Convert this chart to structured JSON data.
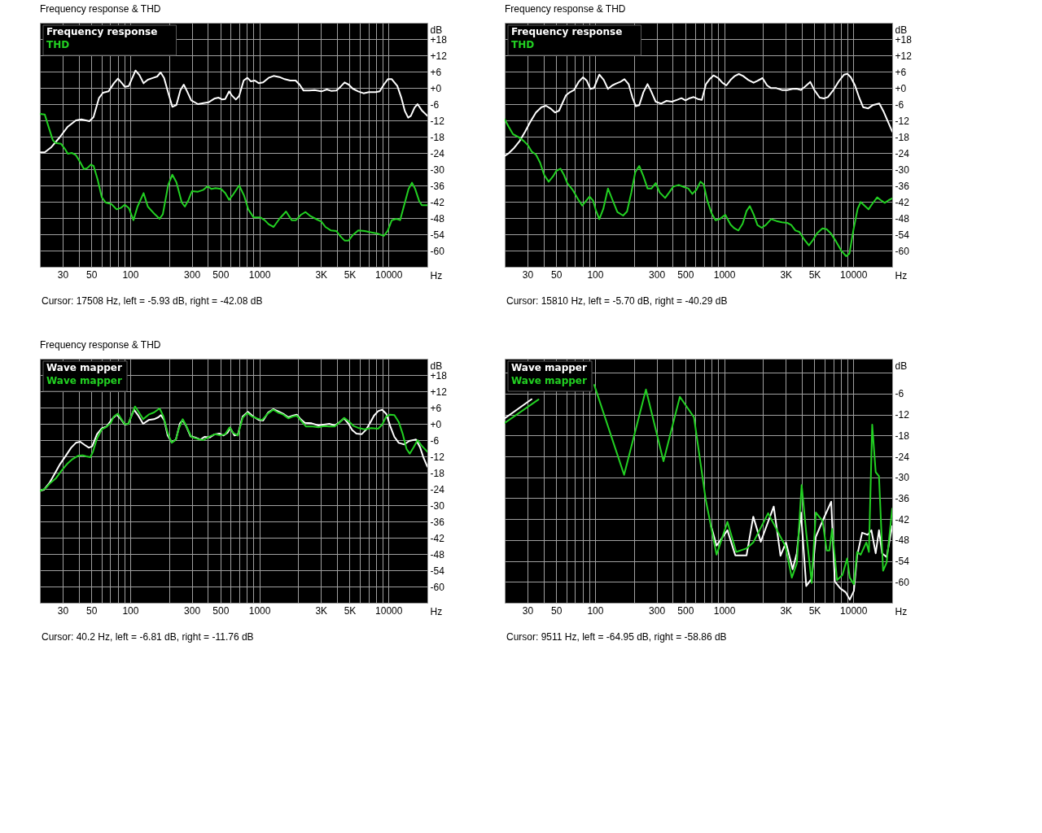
{
  "chart_data": [
    {
      "type": "line",
      "title": "Frequency response & THD",
      "xlabel": "Hz",
      "ylabel": "dB",
      "log": "x",
      "grid": true,
      "legend": "top left",
      "xlim": [
        20,
        20000
      ],
      "ylim": [
        -66,
        24
      ],
      "xticks": [
        30,
        {
          "value": 40,
          "label": null
        },
        50,
        {
          "value": 60,
          "label": null
        },
        {
          "value": 70,
          "label": null
        },
        {
          "value": 80,
          "label": null
        },
        {
          "value": 90,
          "label": null
        },
        100,
        {
          "value": 200,
          "label": null
        },
        300,
        {
          "value": 400,
          "label": null
        },
        500,
        {
          "value": 600,
          "label": null
        },
        {
          "value": 700,
          "label": null
        },
        {
          "value": 800,
          "label": null
        },
        {
          "value": 900,
          "label": null
        },
        1000,
        {
          "value": 2000,
          "label": null
        },
        {
          "value": 3000,
          "label": "3K"
        },
        {
          "value": 4000,
          "label": null
        },
        {
          "value": 5000,
          "label": "5K"
        },
        {
          "value": 6000,
          "label": null
        },
        {
          "value": 7000,
          "label": null
        },
        {
          "value": 8000,
          "label": null
        },
        {
          "value": 9000,
          "label": null
        },
        10000
      ],
      "yticks": [
        {
          "value": 18,
          "label": "+18"
        },
        {
          "value": 12,
          "label": "+12"
        },
        {
          "value": 6,
          "label": "+6"
        },
        {
          "value": 0,
          "label": "+0"
        },
        -6,
        -12,
        -18,
        -24,
        -30,
        -36,
        -42,
        -48,
        -54,
        -60
      ],
      "series": [
        {
          "name": "Frequency response",
          "color": "#ffffff",
          "x": [
            20,
            21.8,
            24.6,
            28.4,
            32.9,
            38,
            41.9,
            48.4,
            52,
            57.3,
            61.6,
            67.9,
            74.8,
            80.4,
            86.5,
            90.8,
            97.6,
            110,
            118,
            127,
            137,
            151,
            162,
            172,
            183,
            197,
            212,
            228,
            245,
            260,
            276,
            297,
            335,
            369,
            406,
            447,
            482,
            518,
            544,
            584,
            613,
            658,
            698,
            756,
            808,
            860,
            923,
            992,
            1070,
            1180,
            1290,
            1430,
            1570,
            1730,
            1910,
            2050,
            2200,
            2430,
            2680,
            3020,
            3330,
            3590,
            3950,
            4250,
            4570,
            4920,
            5290,
            5830,
            6410,
            7050,
            7950,
            8550,
            9200,
            9890,
            10600,
            11700,
            12600,
            13400,
            14200,
            14900,
            15900,
            16800,
            18100,
            20000
          ],
          "values": [
            -23.8,
            -23.8,
            -21.8,
            -18.3,
            -14.3,
            -12,
            -11.6,
            -12.3,
            -10.8,
            -3.8,
            -1.8,
            -1.3,
            1.7,
            3.4,
            1.7,
            0.4,
            0.7,
            6.4,
            4.7,
            1.7,
            3,
            3.7,
            4.2,
            5.7,
            3.7,
            -1.8,
            -7,
            -6.3,
            -0.8,
            1.2,
            -1.3,
            -4.6,
            -6,
            -5.6,
            -5.3,
            -4,
            -3.6,
            -4.3,
            -4.1,
            -1.3,
            -2.8,
            -4.3,
            -3,
            2.7,
            3.7,
            2.4,
            2.7,
            1.7,
            2,
            3.7,
            4.4,
            4,
            3.2,
            2.7,
            2.7,
            1.2,
            -1,
            -1,
            -0.8,
            -1.3,
            -0.6,
            -1.1,
            -1,
            0.4,
            2,
            1.2,
            -0.3,
            -1.3,
            -2,
            -1.6,
            -1.6,
            -1.3,
            1.2,
            3.2,
            3.2,
            0.7,
            -3.8,
            -8.6,
            -11,
            -10.3,
            -7.3,
            -6,
            -8.3,
            -10.3
          ]
        },
        {
          "name": "THD",
          "color": "#22d022",
          "x": [
            20,
            21.8,
            23.5,
            25.2,
            26.4,
            29.1,
            31.3,
            32.9,
            35.3,
            38,
            40.9,
            43.9,
            46.6,
            49.6,
            52.1,
            56,
            60.2,
            64.7,
            71.3,
            78.5,
            84.4,
            90.8,
            97.6,
            106,
            114,
            127,
            137,
            155,
            169,
            179,
            197,
            212,
            228,
            251,
            265,
            283,
            301,
            335,
            369,
            397,
            426,
            458,
            505,
            544,
            584,
            628,
            698,
            763,
            821,
            904,
            1020,
            1100,
            1180,
            1290,
            1430,
            1610,
            1780,
            1920,
            2100,
            2280,
            2490,
            2810,
            3020,
            3250,
            3590,
            3950,
            4250,
            4570,
            4920,
            5290,
            5830,
            6550,
            7380,
            8310,
            9200,
            9890,
            10600,
            11500,
            12300,
            13300,
            14300,
            15200,
            16100,
            17300,
            18100,
            20000
          ],
          "values": [
            -9.6,
            -9.8,
            -14.8,
            -19.3,
            -20.3,
            -20.6,
            -22.6,
            -24.3,
            -24,
            -24.8,
            -27.3,
            -30,
            -29.6,
            -28.3,
            -28.8,
            -33.8,
            -40.3,
            -42.3,
            -42.8,
            -44.8,
            -44.3,
            -43.1,
            -44.3,
            -48.8,
            -43.8,
            -38.8,
            -43.8,
            -46.6,
            -48.3,
            -46.6,
            -35.8,
            -32,
            -34.8,
            -42.3,
            -43.8,
            -41.3,
            -38.1,
            -38.3,
            -37.6,
            -36.3,
            -37.3,
            -37,
            -37.3,
            -38.8,
            -41.3,
            -39.3,
            -36,
            -39.8,
            -44.8,
            -47.8,
            -47.8,
            -48.8,
            -50.3,
            -51.3,
            -48.3,
            -45.6,
            -48.8,
            -48.8,
            -46.8,
            -45.8,
            -47.3,
            -48.6,
            -49.3,
            -51.3,
            -52.6,
            -52.8,
            -54.8,
            -56.3,
            -56.3,
            -54.3,
            -52.6,
            -52.8,
            -53.3,
            -53.8,
            -54.6,
            -52.6,
            -48.8,
            -48.3,
            -48.8,
            -42.8,
            -37.3,
            -35,
            -37.3,
            -41.8,
            -43.3,
            -43.3
          ]
        }
      ],
      "annotations": [
        "Cursor: 17508 Hz, left = -5.93 dB, right = -42.08 dB"
      ]
    },
    {
      "type": "line",
      "title": "Frequency response & THD",
      "xlabel": "Hz",
      "ylabel": "dB",
      "log": "x",
      "grid": true,
      "legend": "top left",
      "xlim": [
        20,
        20000
      ],
      "ylim": [
        -66,
        24
      ],
      "xticks": [
        30,
        {
          "value": 40,
          "label": null
        },
        50,
        {
          "value": 60,
          "label": null
        },
        {
          "value": 70,
          "label": null
        },
        {
          "value": 80,
          "label": null
        },
        {
          "value": 90,
          "label": null
        },
        100,
        {
          "value": 200,
          "label": null
        },
        300,
        {
          "value": 400,
          "label": null
        },
        500,
        {
          "value": 600,
          "label": null
        },
        {
          "value": 700,
          "label": null
        },
        {
          "value": 800,
          "label": null
        },
        {
          "value": 900,
          "label": null
        },
        1000,
        {
          "value": 2000,
          "label": null
        },
        {
          "value": 3000,
          "label": "3K"
        },
        {
          "value": 4000,
          "label": null
        },
        {
          "value": 5000,
          "label": "5K"
        },
        {
          "value": 6000,
          "label": null
        },
        {
          "value": 7000,
          "label": null
        },
        {
          "value": 8000,
          "label": null
        },
        {
          "value": 9000,
          "label": null
        },
        10000
      ],
      "yticks": [
        {
          "value": 18,
          "label": "+18"
        },
        {
          "value": 12,
          "label": "+12"
        },
        {
          "value": 6,
          "label": "+6"
        },
        {
          "value": 0,
          "label": "+0"
        },
        -6,
        -12,
        -18,
        -24,
        -30,
        -36,
        -42,
        -48,
        -54,
        -60
      ],
      "series": [
        {
          "name": "Frequency response",
          "color": "#ffffff",
          "x": [
            20,
            21.5,
            23.7,
            26.1,
            28.8,
            31.7,
            34.9,
            38.5,
            41.8,
            45.2,
            49,
            52.7,
            59.5,
            64,
            68.8,
            74.7,
            80.8,
            86.5,
            92.1,
            98.1,
            108,
            117,
            126,
            136,
            146,
            157,
            169,
            182,
            195,
            207,
            220,
            237,
            255,
            271,
            295,
            325,
            358,
            394,
            434,
            467,
            502,
            541,
            581,
            625,
            672,
            723,
            778,
            828,
            900,
            968,
            1040,
            1120,
            1210,
            1300,
            1400,
            1540,
            1690,
            1810,
            1980,
            2150,
            2310,
            2540,
            2800,
            3080,
            3390,
            3640,
            3920,
            4210,
            4640,
            4990,
            5490,
            5910,
            6360,
            7010,
            7710,
            8480,
            8990,
            9560,
            10300,
            11100,
            11900,
            13000,
            14100,
            15900,
            17100,
            18400,
            20000
          ],
          "values": [
            -25.1,
            -24.1,
            -22.1,
            -19.6,
            -16.1,
            -12.4,
            -9.1,
            -7.1,
            -6.6,
            -7.6,
            -9.1,
            -8.4,
            -2.8,
            -1.6,
            -0.8,
            2.2,
            3.9,
            2.6,
            -0.4,
            -0.1,
            4.9,
            2.9,
            -0.4,
            0.9,
            1.6,
            2.2,
            3.2,
            1.4,
            -3.6,
            -6.8,
            -6.4,
            -1.6,
            1.4,
            -1.1,
            -5.1,
            -5.8,
            -4.8,
            -5.1,
            -4.4,
            -3.8,
            -4.6,
            -3.8,
            -3.4,
            -4.1,
            -4.4,
            1.4,
            3.4,
            4.6,
            3.6,
            1.9,
            0.9,
            2.9,
            4.4,
            5.1,
            4.4,
            2.9,
            1.9,
            2.6,
            3.6,
            0.9,
            -0.1,
            -0.1,
            -0.8,
            -0.8,
            -0.4,
            -0.3,
            -0.8,
            0.4,
            2.2,
            -0.8,
            -3.6,
            -3.9,
            -3.4,
            -0.8,
            2.4,
            4.9,
            5.2,
            3.9,
            0.9,
            -3.6,
            -7.1,
            -7.6,
            -6.4,
            -5.8,
            -8.6,
            -12.1,
            -16.1
          ]
        },
        {
          "name": "THD",
          "color": "#22d022",
          "x": [
            20,
            21.5,
            23.2,
            25.5,
            28.1,
            30.2,
            32.5,
            34.9,
            37.6,
            40.4,
            43.8,
            47.4,
            50.2,
            54,
            57.5,
            61,
            67.1,
            74,
            79.6,
            85.6,
            90.8,
            96.7,
            101.5,
            108,
            116,
            126,
            136,
            149,
            165,
            177,
            191,
            205,
            220,
            237,
            255,
            274,
            295,
            317,
            349,
            375,
            404,
            445,
            490,
            527,
            567,
            610,
            655,
            694,
            741,
            797,
            857,
            922,
            1020,
            1120,
            1200,
            1290,
            1390,
            1490,
            1580,
            1690,
            1810,
            1950,
            2100,
            2310,
            2540,
            2800,
            3080,
            3310,
            3560,
            3820,
            4120,
            4530,
            4870,
            5240,
            5770,
            6210,
            6680,
            7340,
            8080,
            8810,
            9330,
            10000,
            10800,
            11400,
            12200,
            13100,
            14100,
            15300,
            16300,
            17500,
            18800,
            20000
          ],
          "values": [
            -11.6,
            -14.4,
            -17.1,
            -18.1,
            -19.6,
            -21.1,
            -23.6,
            -24.6,
            -27.6,
            -32.1,
            -34.6,
            -32.6,
            -30.6,
            -29.8,
            -32.1,
            -35.1,
            -37.6,
            -41.1,
            -43.4,
            -41.6,
            -40.1,
            -41.6,
            -45.1,
            -48.4,
            -44.6,
            -37.1,
            -41.1,
            -45.8,
            -47.1,
            -45.6,
            -38.6,
            -31.1,
            -28.8,
            -32.6,
            -37.1,
            -37.1,
            -35.1,
            -38.6,
            -40.6,
            -38.6,
            -36.4,
            -35.8,
            -36.6,
            -37.1,
            -39.1,
            -37.6,
            -34.6,
            -35.6,
            -41.6,
            -46.1,
            -48.8,
            -48.4,
            -46.8,
            -50.4,
            -51.8,
            -52.6,
            -50.1,
            -45.4,
            -43.6,
            -46.6,
            -50.6,
            -51.6,
            -50.6,
            -48.4,
            -49.1,
            -49.6,
            -49.8,
            -50.6,
            -52.6,
            -53.1,
            -55.6,
            -58.1,
            -56.1,
            -53.6,
            -51.8,
            -52.1,
            -53.6,
            -56.6,
            -60.1,
            -62.1,
            -61.1,
            -52.6,
            -44.6,
            -42.1,
            -43.4,
            -44.8,
            -42.6,
            -40.4,
            -41.4,
            -42.4,
            -41.4,
            -40.8
          ]
        }
      ],
      "annotations": [
        "Cursor: 15810 Hz, left = -5.70 dB, right = -40.29 dB"
      ]
    },
    {
      "type": "line",
      "title": "Frequency response & THD",
      "xlabel": "Hz",
      "ylabel": "dB",
      "log": "x",
      "grid": true,
      "legend": "top left",
      "xlim": [
        20,
        20000
      ],
      "ylim": [
        -66,
        24
      ],
      "xticks": [
        30,
        {
          "value": 40,
          "label": null
        },
        50,
        {
          "value": 60,
          "label": null
        },
        {
          "value": 70,
          "label": null
        },
        {
          "value": 80,
          "label": null
        },
        {
          "value": 90,
          "label": null
        },
        100,
        {
          "value": 200,
          "label": null
        },
        300,
        {
          "value": 400,
          "label": null
        },
        500,
        {
          "value": 600,
          "label": null
        },
        {
          "value": 700,
          "label": null
        },
        {
          "value": 800,
          "label": null
        },
        {
          "value": 900,
          "label": null
        },
        1000,
        {
          "value": 2000,
          "label": null
        },
        {
          "value": 3000,
          "label": "3K"
        },
        {
          "value": 4000,
          "label": null
        },
        {
          "value": 5000,
          "label": "5K"
        },
        {
          "value": 6000,
          "label": null
        },
        {
          "value": 7000,
          "label": null
        },
        {
          "value": 8000,
          "label": null
        },
        {
          "value": 9000,
          "label": null
        },
        10000
      ],
      "yticks": [
        {
          "value": 18,
          "label": "+18"
        },
        {
          "value": 12,
          "label": "+12"
        },
        {
          "value": 6,
          "label": "+6"
        },
        {
          "value": 0,
          "label": "+0"
        },
        -6,
        -12,
        -18,
        -24,
        -30,
        -36,
        -42,
        -48,
        -54,
        -60
      ],
      "series": [
        {
          "name": "Wave mapper",
          "color": "#ffffff",
          "x": [
            20,
            21.5,
            23.7,
            26.1,
            28.7,
            31.7,
            34.9,
            38,
            41,
            44.5,
            47.9,
            50.8,
            55.4,
            60.4,
            65.6,
            72.2,
            78.5,
            84.8,
            90.8,
            96.7,
            107,
            115,
            126,
            139,
            153,
            165,
            173,
            184,
            195,
            210,
            226,
            243,
            255,
            271,
            293,
            318,
            350,
            376,
            414,
            445,
            489,
            527,
            567,
            596,
            641,
            682,
            742,
            816,
            898,
            993,
            1070,
            1170,
            1280,
            1390,
            1530,
            1680,
            1810,
            1950,
            2090,
            2250,
            2540,
            2870,
            3160,
            3480,
            3830,
            4120,
            4530,
            4870,
            5240,
            5640,
            6210,
            6670,
            7180,
            7720,
            8310,
            8930,
            9610,
            10300,
            11100,
            12000,
            13200,
            14500,
            16300,
            17600,
            18600,
            20000
          ],
          "values": [
            -24.8,
            -24.3,
            -21.8,
            -18.3,
            -14.8,
            -11.8,
            -8.8,
            -7,
            -6.6,
            -7.8,
            -8.8,
            -8.3,
            -3.8,
            -1.6,
            -1,
            1.7,
            3.4,
            1.7,
            -0.3,
            0,
            5.2,
            3.2,
            0,
            1.4,
            1.7,
            2.4,
            3.2,
            1.2,
            -4.3,
            -6.8,
            -5.8,
            0.2,
            1.4,
            -0.8,
            -4.6,
            -5,
            -5.8,
            -4.8,
            -5,
            -4,
            -3.6,
            -4.3,
            -3.3,
            -1.6,
            -4.3,
            -4,
            2.7,
            4.4,
            2.7,
            1.4,
            1.2,
            4.2,
            5.4,
            4.7,
            3.7,
            2.4,
            3,
            3.4,
            1.7,
            0.4,
            0.2,
            -0.6,
            -0.3,
            0,
            -0.6,
            0.4,
            2,
            0.2,
            -2.3,
            -3.6,
            -3.8,
            -2.3,
            0.2,
            3,
            4.7,
            5.2,
            3.7,
            -0.8,
            -4.8,
            -7,
            -7.6,
            -6.3,
            -5.8,
            -8.8,
            -12.3,
            -15.8
          ]
        },
        {
          "name": "Wave mapper",
          "color": "#22d022",
          "x": [
            20,
            22.1,
            24.1,
            26.7,
            29.4,
            32.5,
            35.8,
            39.5,
            42.9,
            45.6,
            49.2,
            51.5,
            55.4,
            60.4,
            64.7,
            70.5,
            74.8,
            80.4,
            84.8,
            90.8,
            96.7,
            109,
            117,
            126,
            139,
            153,
            169,
            181,
            195,
            210,
            226,
            238,
            255,
            271,
            297,
            334,
            369,
            414,
            456,
            502,
            544,
            589,
            625,
            682,
            742,
            808,
            878,
            962,
            1050,
            1160,
            1280,
            1390,
            1530,
            1680,
            1810,
            1950,
            2140,
            2300,
            2590,
            2870,
            3160,
            3480,
            3830,
            4210,
            4530,
            4990,
            5370,
            5910,
            6520,
            7360,
            8310,
            8930,
            9610,
            10300,
            11100,
            12000,
            12900,
            13800,
            14600,
            15600,
            16800,
            18000,
            20000
          ],
          "values": [
            -24.8,
            -23.8,
            -21.8,
            -20,
            -17.3,
            -14.8,
            -13,
            -11.8,
            -11.6,
            -12,
            -12.3,
            -10.3,
            -5.3,
            -2,
            -1.3,
            0.2,
            2.7,
            3.7,
            2,
            -0.1,
            -0.1,
            6.4,
            4.2,
            1.7,
            3.4,
            4.2,
            5.7,
            2.7,
            -3.3,
            -7,
            -5.8,
            -1.8,
            1.7,
            -0.6,
            -4.8,
            -5.6,
            -6,
            -4.6,
            -3.8,
            -4.3,
            -3.8,
            -1.3,
            -3.3,
            -4.3,
            2.2,
            4,
            2.7,
            2,
            1.4,
            3.7,
            5.2,
            4.2,
            3.4,
            2,
            2.7,
            3,
            0.7,
            -1,
            -1,
            -1.3,
            -0.8,
            -1,
            -1,
            0.7,
            2.2,
            0.7,
            -0.8,
            -1.6,
            -2,
            -1.6,
            -1.8,
            -0.3,
            2.7,
            3.4,
            3.2,
            0.7,
            -3.8,
            -9.3,
            -11,
            -8.8,
            -6,
            -8,
            -10.3
          ]
        }
      ],
      "annotations": [
        "Cursor: 40.2 Hz, left = -6.81 dB, right = -11.76 dB"
      ]
    },
    {
      "type": "line",
      "xlabel": "Hz",
      "ylabel": "dB",
      "log": "x",
      "grid": true,
      "legend": "top left",
      "xlim": [
        20,
        20000
      ],
      "ylim": [
        -66,
        4
      ],
      "xticks": [
        30,
        {
          "value": 40,
          "label": null
        },
        50,
        {
          "value": 60,
          "label": null
        },
        {
          "value": 70,
          "label": null
        },
        {
          "value": 80,
          "label": null
        },
        {
          "value": 90,
          "label": null
        },
        100,
        {
          "value": 200,
          "label": null
        },
        300,
        {
          "value": 400,
          "label": null
        },
        500,
        {
          "value": 600,
          "label": null
        },
        {
          "value": 700,
          "label": null
        },
        {
          "value": 800,
          "label": null
        },
        {
          "value": 900,
          "label": null
        },
        1000,
        {
          "value": 2000,
          "label": null
        },
        {
          "value": 3000,
          "label": "3K"
        },
        {
          "value": 4000,
          "label": null
        },
        {
          "value": 5000,
          "label": "5K"
        },
        {
          "value": 6000,
          "label": null
        },
        {
          "value": 7000,
          "label": null
        },
        {
          "value": 8000,
          "label": null
        },
        {
          "value": 9000,
          "label": null
        },
        10000
      ],
      "yticks": [
        {
          "value": 0,
          "label": null
        },
        -6,
        -12,
        -18,
        -24,
        -30,
        -36,
        -42,
        -48,
        -54,
        -60
      ],
      "series": [
        {
          "name": "Wave mapper",
          "color": "#ffffff",
          "x": [
            20,
            32.3,
            60,
            793,
            873,
            1060,
            1220,
            1490,
            1680,
            1920,
            2420,
            2730,
            3010,
            3390,
            3650,
            3930,
            4320,
            4760,
            5120,
            5780,
            6740,
            7190,
            7940,
            8740,
            9390,
            10100,
            10700,
            11700,
            12900,
            13800,
            14900,
            15800,
            16700,
            18100,
            20000
          ],
          "values": [
            -13.1,
            -7.6,
            null,
            -44,
            -49.6,
            -45.2,
            -52.4,
            -52.4,
            -41.3,
            -48.5,
            -38.4,
            -52.5,
            -48.7,
            -56.4,
            -51.8,
            -40.1,
            -61.2,
            -59.1,
            -47.1,
            -42.5,
            -37,
            -59.9,
            -61.9,
            -63,
            -65.1,
            -62.6,
            -52.5,
            -45.9,
            -46.5,
            -45.2,
            -51.8,
            -45.2,
            -51.8,
            -52.9,
            -44
          ]
        },
        {
          "name": "Wave mapper",
          "color": "#22d022",
          "x": [
            20,
            36.5,
            60,
            98.6,
            168,
            248,
            339,
            454,
            584,
            719,
            873,
            1060,
            1240,
            1490,
            1680,
            2190,
            2980,
            3340,
            3650,
            3980,
            4320,
            4760,
            5120,
            5780,
            6220,
            6530,
            6850,
            7480,
            8240,
            8950,
            9390,
            10100,
            10700,
            11400,
            12600,
            13200,
            14000,
            14900,
            15800,
            17000,
            18100,
            20000
          ],
          "values": [
            -14.4,
            -7.7,
            null,
            -3.5,
            -29.3,
            -4.8,
            -25.4,
            -6.9,
            -12.8,
            -36.3,
            -52.2,
            -42.8,
            -51.4,
            -50.4,
            -48.7,
            -40.3,
            -49.8,
            -58.8,
            -54.7,
            -32.2,
            -45.9,
            -60.3,
            -40.1,
            -42.5,
            -51,
            -51,
            -44.8,
            -59.5,
            -58,
            -53.3,
            -58.8,
            -60.7,
            -51.4,
            -52.2,
            -48.7,
            -51.4,
            -14.9,
            -28.5,
            -29.7,
            -56.8,
            -54.5,
            -39
          ]
        }
      ],
      "annotations": [
        "Cursor: 9511 Hz, left = -64.95 dB, right = -58.86 dB"
      ]
    }
  ]
}
